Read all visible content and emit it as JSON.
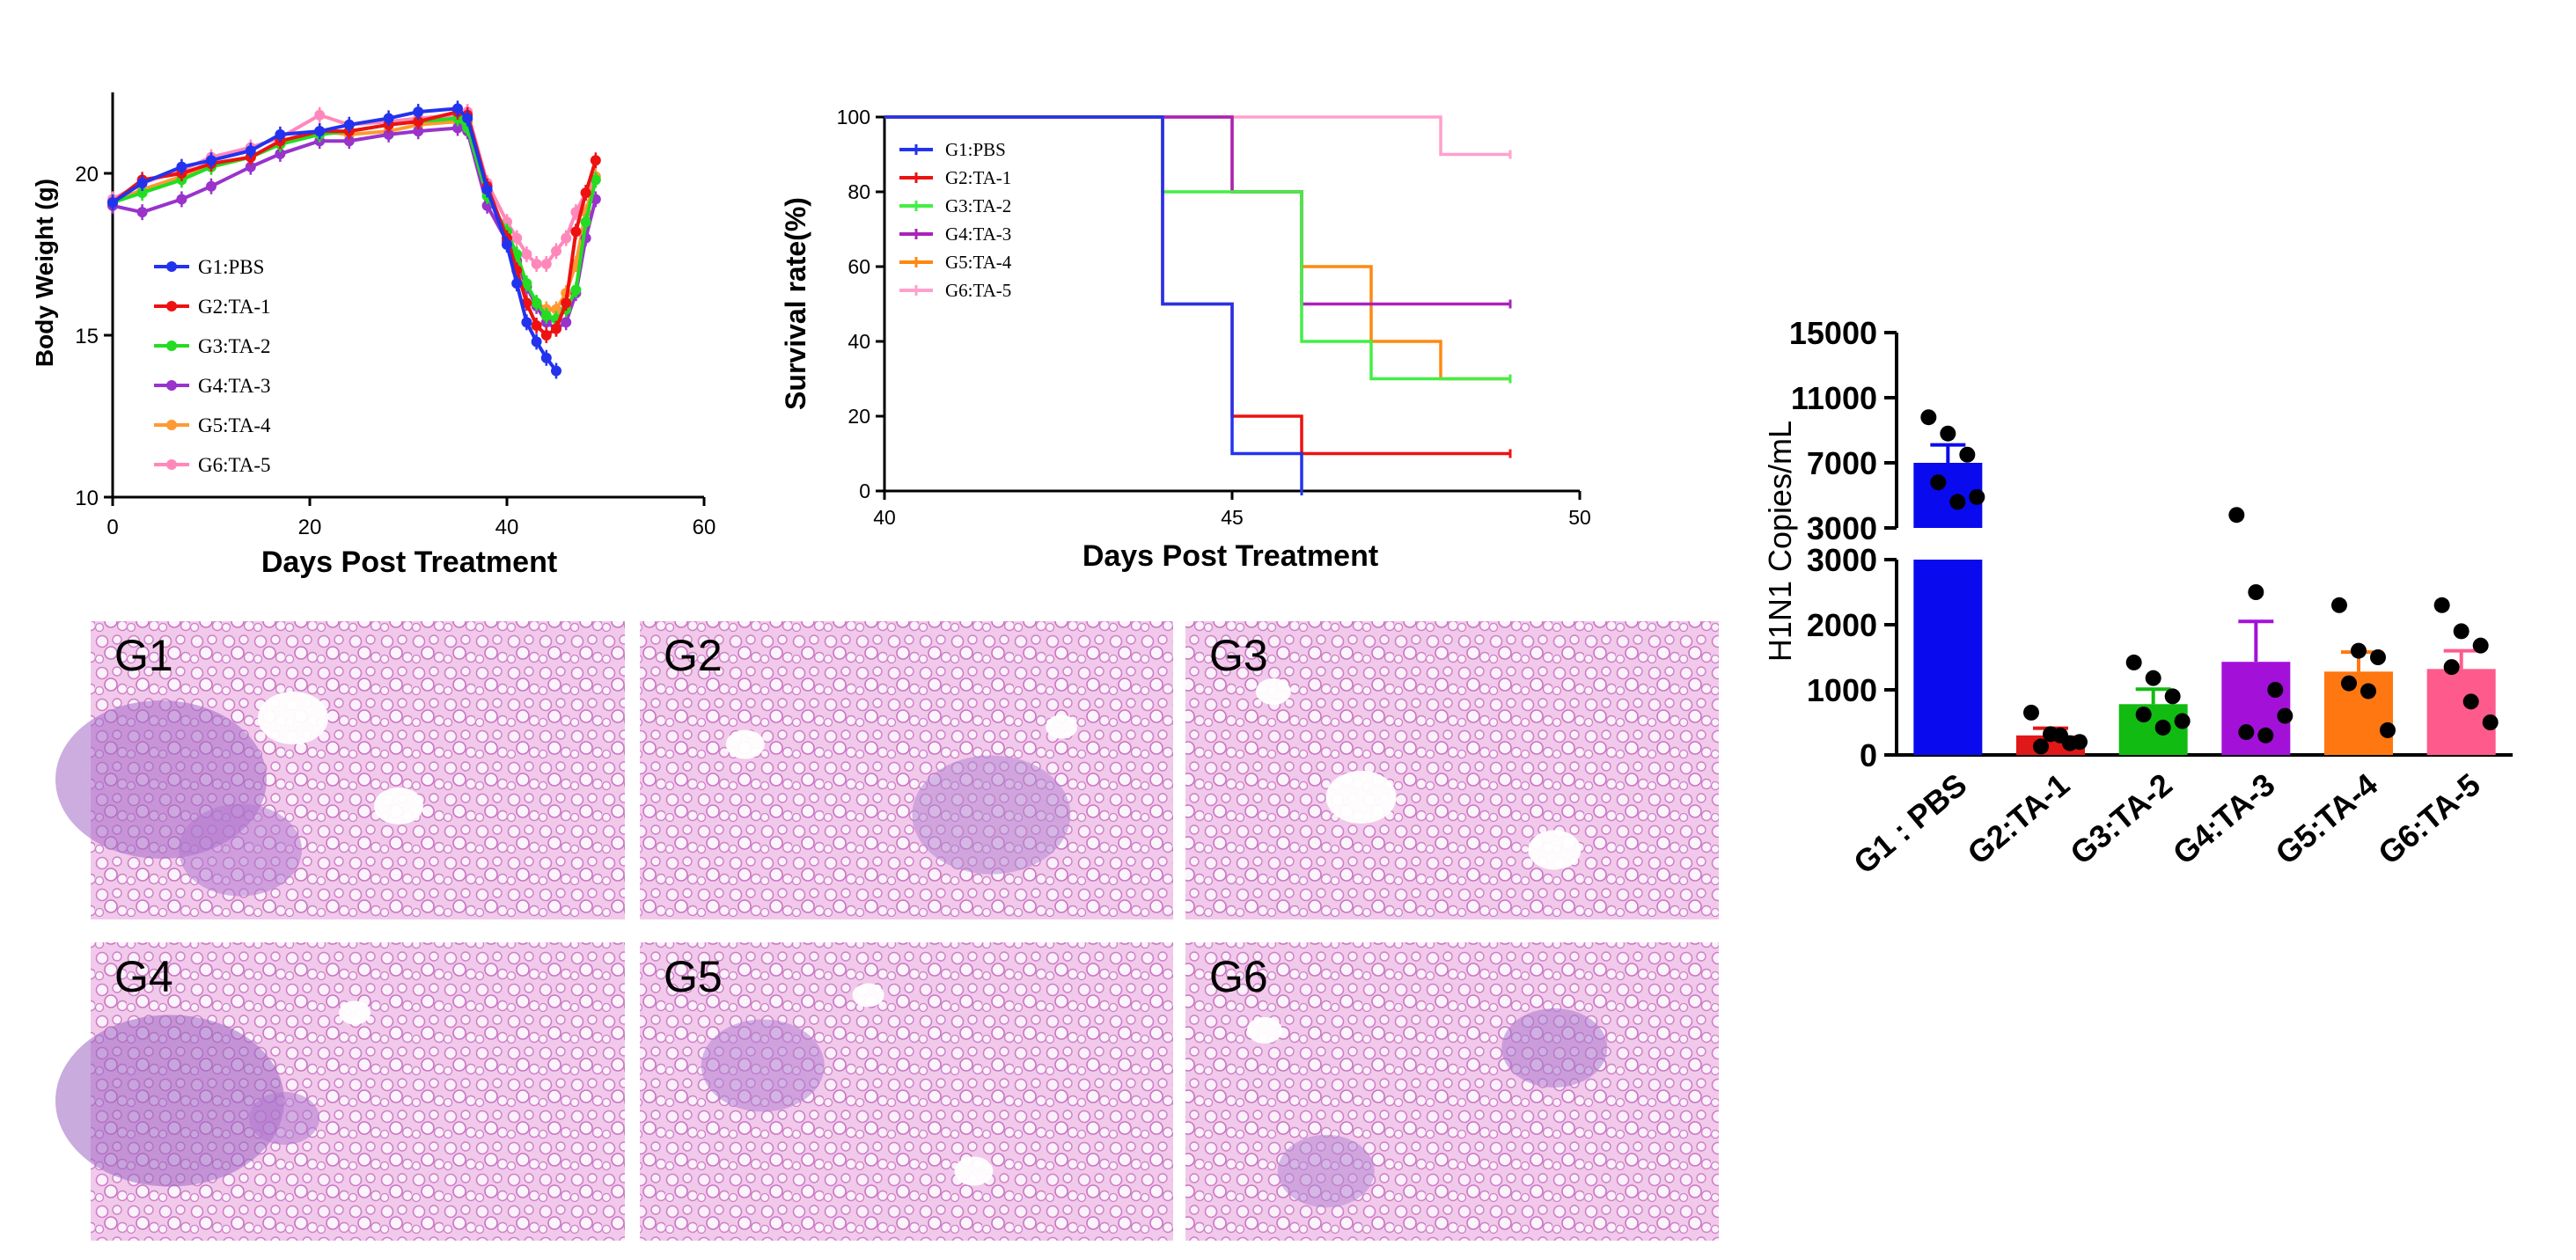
{
  "chart_data": [
    {
      "type": "line",
      "xlabel": "Days Post Treatment",
      "ylabel": "Body Weight (g)",
      "xlim": [
        0,
        60
      ],
      "ylim": [
        10,
        22.5
      ],
      "x_ticks": [
        0,
        20,
        40,
        60
      ],
      "y_ticks": [
        10,
        15,
        20
      ],
      "legend_position": "left",
      "x": [
        0,
        3,
        7,
        10,
        14,
        17,
        21,
        24,
        28,
        31,
        35,
        36,
        38,
        40,
        41,
        42,
        43,
        44,
        45,
        46,
        47,
        48,
        49
      ],
      "series": [
        {
          "name": "G1:PBS",
          "color": "#2233ee",
          "values": [
            19.1,
            19.7,
            20.2,
            20.4,
            20.7,
            21.2,
            21.3,
            21.5,
            21.7,
            21.9,
            22.0,
            21.7,
            19.5,
            17.8,
            16.6,
            15.4,
            14.8,
            14.3,
            13.9,
            null,
            null,
            null,
            null
          ]
        },
        {
          "name": "G2:TA-1",
          "color": "#ee1111",
          "values": [
            19.1,
            19.8,
            20.0,
            20.3,
            20.5,
            21.0,
            21.3,
            21.3,
            21.5,
            21.6,
            21.9,
            21.8,
            19.6,
            18.0,
            17.0,
            16.0,
            15.3,
            15.0,
            15.2,
            16.0,
            18.2,
            19.4,
            20.4
          ]
        },
        {
          "name": "G3:TA-2",
          "color": "#22dd22",
          "values": [
            19.1,
            19.4,
            19.8,
            20.2,
            20.5,
            20.9,
            21.2,
            21.3,
            21.5,
            21.6,
            21.7,
            21.4,
            19.3,
            18.2,
            17.5,
            16.6,
            16.0,
            15.6,
            15.5,
            15.8,
            16.4,
            18.5,
            19.8
          ]
        },
        {
          "name": "G4:TA-3",
          "color": "#9933cc",
          "values": [
            19.0,
            18.8,
            19.2,
            19.6,
            20.2,
            20.6,
            21.0,
            21.0,
            21.2,
            21.3,
            21.4,
            21.3,
            19.0,
            17.9,
            17.3,
            16.5,
            15.9,
            15.4,
            15.2,
            15.4,
            16.3,
            18.0,
            19.2
          ]
        },
        {
          "name": "G5:TA-4",
          "color": "#ff9933",
          "values": [
            19.1,
            19.5,
            19.9,
            20.2,
            20.5,
            20.9,
            21.3,
            21.2,
            21.3,
            21.5,
            21.6,
            21.6,
            19.4,
            18.0,
            17.2,
            16.5,
            16.0,
            15.8,
            15.8,
            16.3,
            17.2,
            18.8,
            19.9
          ]
        },
        {
          "name": "G6:TA-5",
          "color": "#ff88bb",
          "values": [
            19.2,
            19.7,
            20.1,
            20.5,
            20.8,
            21.1,
            21.8,
            21.5,
            21.6,
            21.7,
            21.8,
            21.9,
            19.7,
            18.5,
            18.0,
            17.5,
            17.2,
            17.2,
            17.6,
            18.0,
            18.8,
            19.4,
            19.8
          ]
        }
      ]
    },
    {
      "type": "line",
      "subtype": "survival-step",
      "xlabel": "Days Post Treatment",
      "ylabel": "Survival rate(%)",
      "xlim": [
        40,
        50
      ],
      "ylim": [
        0,
        100
      ],
      "x_ticks": [
        40,
        45,
        50
      ],
      "y_ticks": [
        0,
        20,
        40,
        60,
        80,
        100
      ],
      "legend_position": "top-left",
      "series": [
        {
          "name": "G1:PBS",
          "color": "#2233ee",
          "steps": [
            [
              40,
              100
            ],
            [
              44,
              50
            ],
            [
              45,
              10
            ],
            [
              46,
              0
            ]
          ],
          "end": 46
        },
        {
          "name": "G2:TA-1",
          "color": "#ee1111",
          "steps": [
            [
              40,
              100
            ],
            [
              44,
              50
            ],
            [
              45,
              20
            ],
            [
              46,
              10
            ]
          ],
          "end": 49
        },
        {
          "name": "G3:TA-2",
          "color": "#44ee44",
          "steps": [
            [
              40,
              100
            ],
            [
              44,
              80
            ],
            [
              46,
              40
            ],
            [
              47,
              30
            ]
          ],
          "end": 49
        },
        {
          "name": "G4:TA-3",
          "color": "#aa22bb",
          "steps": [
            [
              40,
              100
            ],
            [
              45,
              80
            ],
            [
              46,
              50
            ]
          ],
          "end": 49
        },
        {
          "name": "G5:TA-4",
          "color": "#ff8811",
          "steps": [
            [
              40,
              100
            ],
            [
              45,
              80
            ],
            [
              46,
              60
            ],
            [
              47,
              40
            ],
            [
              48,
              30
            ]
          ],
          "end": 49
        },
        {
          "name": "G6:TA-5",
          "color": "#ffa0cc",
          "steps": [
            [
              40,
              100
            ],
            [
              48,
              90
            ]
          ],
          "end": 49
        }
      ]
    },
    {
      "type": "bar",
      "ylabel": "H1N1 Copies/mL",
      "y_ticks_lower": [
        0,
        1000,
        2000,
        3000
      ],
      "y_ticks_upper": [
        3000,
        7000,
        11000,
        15000
      ],
      "y_break": 3000,
      "categories": [
        "G1 : PBS",
        "G2:TA-1",
        "G3:TA-2",
        "G4:TA-3",
        "G5:TA-4",
        "G6:TA-5"
      ],
      "values": [
        7000,
        300,
        780,
        1430,
        1280,
        1320
      ],
      "errors": [
        1100,
        110,
        230,
        620,
        300,
        280
      ],
      "colors": [
        "#0a0aee",
        "#e01818",
        "#11bb11",
        "#a311d8",
        "#ff7711",
        "#ff5a8c"
      ],
      "points": [
        [
          9800,
          8800,
          7500,
          5800,
          4600,
          4900
        ],
        [
          650,
          320,
          180,
          130,
          300,
          200
        ],
        [
          1420,
          1180,
          900,
          620,
          420,
          520
        ],
        [
          3800,
          2500,
          1000,
          350,
          300,
          600
        ],
        [
          2300,
          1600,
          1500,
          1100,
          980,
          380
        ],
        [
          2300,
          1900,
          1680,
          1350,
          820,
          500
        ]
      ]
    }
  ],
  "histology": {
    "labels": [
      "G1",
      "G2",
      "G3",
      "G4",
      "G5",
      "G6"
    ]
  }
}
